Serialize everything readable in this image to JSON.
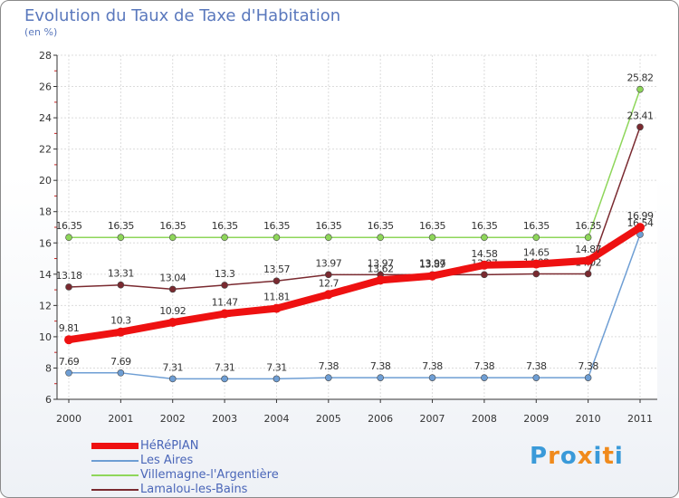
{
  "header": {
    "title": "Evolution du Taux de Taxe d'Habitation",
    "subtitle": "(en %)"
  },
  "logo": {
    "text": "Proxiti",
    "letters": [
      "P",
      "r",
      "o",
      "x",
      "i",
      "t",
      "i"
    ],
    "colors": [
      "#3a9ad9",
      "#f08a1c",
      "#3a9ad9",
      "#f08a1c",
      "#3a9ad9",
      "#f08a1c",
      "#3a9ad9"
    ]
  },
  "chart_data": {
    "type": "line",
    "title": "Evolution du Taux de Taxe d'Habitation",
    "ylabel": "(en %)",
    "xlabel": "",
    "categories": [
      "2000",
      "2001",
      "2002",
      "2003",
      "2004",
      "2005",
      "2006",
      "2007",
      "2008",
      "2009",
      "2010",
      "2011"
    ],
    "ylim": [
      6,
      28
    ],
    "yticks": [
      6,
      8,
      10,
      12,
      14,
      16,
      18,
      20,
      22,
      24,
      26,
      28
    ],
    "grid": true,
    "legend_position": "bottom-left",
    "series": [
      {
        "name": "Villemagne-l'Argentière",
        "color": "#8ed65a",
        "values": [
          16.35,
          16.35,
          16.35,
          16.35,
          16.35,
          16.35,
          16.35,
          16.35,
          16.35,
          16.35,
          16.35,
          25.82
        ],
        "labels": [
          "16.35",
          "16.35",
          "16.35",
          "16.35",
          "16.35",
          "16.35",
          "16.35",
          "16.35",
          "16.35",
          "16.35",
          "16.35",
          "25.82"
        ]
      },
      {
        "name": "Lamalou-les-Bains",
        "color": "#7a2a30",
        "values": [
          13.18,
          13.31,
          13.04,
          13.3,
          13.57,
          13.97,
          13.97,
          13.97,
          13.97,
          14.02,
          14.02,
          23.41
        ],
        "labels": [
          "13.18",
          "13.31",
          "13.04",
          "13.3",
          "13.57",
          "13.97",
          "13.97",
          "13.97",
          "13.97",
          "14.02",
          "14.02",
          "23.41"
        ]
      },
      {
        "name": "Les Aires",
        "color": "#6e9ed4",
        "values": [
          7.69,
          7.69,
          7.31,
          7.31,
          7.31,
          7.38,
          7.38,
          7.38,
          7.38,
          7.38,
          7.38,
          16.54
        ],
        "labels": [
          "7.69",
          "7.69",
          "7.31",
          "7.31",
          "7.31",
          "7.38",
          "7.38",
          "7.38",
          "7.38",
          "7.38",
          "7.38",
          "16.54"
        ]
      },
      {
        "name": "HéRéPIAN",
        "color": "#ee1111",
        "values": [
          9.81,
          10.3,
          10.92,
          11.47,
          11.81,
          12.7,
          13.62,
          13.89,
          14.58,
          14.65,
          14.87,
          16.99
        ],
        "labels": [
          "9.81",
          "10.3",
          "10.92",
          "11.47",
          "11.81",
          "12.7",
          "13.62",
          "13.89",
          "14.58",
          "14.65",
          "14.87",
          "16.99"
        ]
      }
    ],
    "legend": [
      "HéRéPIAN",
      "Les Aires",
      "Villemagne-l'Argentière",
      "Lamalou-les-Bains"
    ]
  }
}
